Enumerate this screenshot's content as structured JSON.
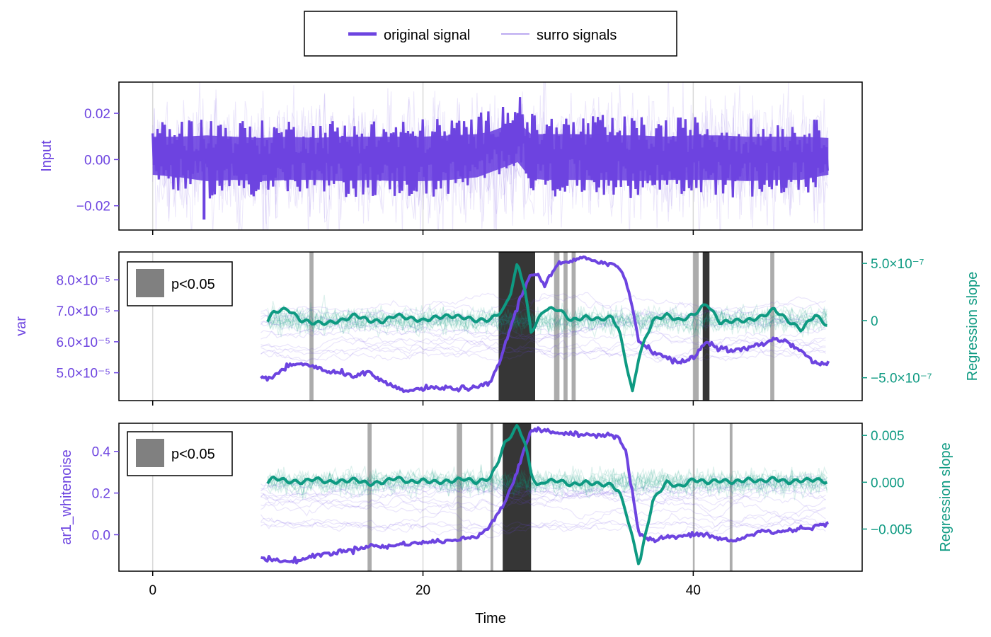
{
  "chart_data": {
    "type": "line",
    "colors": {
      "purple": "#6d44e0",
      "teal": "#0e9a82",
      "sig": "#808080",
      "axis": "#000000",
      "grid": "#d9d9d9"
    },
    "legend": {
      "placement": "top-center",
      "original": "original signal",
      "surro": "surro signals"
    },
    "xaxis": {
      "label": "Time",
      "range": [
        -2.5,
        52.5
      ],
      "ticks": [
        0,
        20,
        40
      ],
      "tick_labels": [
        "0",
        "20",
        "40"
      ]
    },
    "panels": [
      {
        "id": "input",
        "ylabel": "Input",
        "ylim": [
          -0.0305,
          0.0335
        ],
        "yticks": [
          0.02,
          0.0,
          -0.02
        ],
        "ytick_labels": [
          "0.02",
          "0.00",
          "−0.02"
        ],
        "series_original": {
          "name": "original signal",
          "x": [
            0,
            2,
            4,
            6,
            8,
            10,
            12,
            14,
            16,
            18,
            20,
            22,
            24,
            25,
            26,
            27,
            28,
            29,
            30,
            32,
            34,
            36,
            38,
            40,
            42,
            44,
            46,
            48,
            50
          ],
          "y_upper": [
            0.018,
            0.018,
            0.019,
            0.018,
            0.017,
            0.018,
            0.017,
            0.018,
            0.018,
            0.018,
            0.018,
            0.019,
            0.02,
            0.022,
            0.026,
            0.03,
            0.02,
            0.02,
            0.02,
            0.02,
            0.019,
            0.019,
            0.018,
            0.019,
            0.019,
            0.018,
            0.018,
            0.018,
            0.017
          ],
          "y_lower": [
            -0.012,
            -0.014,
            -0.017,
            -0.016,
            -0.017,
            -0.016,
            -0.016,
            -0.017,
            -0.016,
            -0.017,
            -0.017,
            -0.016,
            -0.014,
            -0.01,
            -0.006,
            -0.002,
            -0.015,
            -0.016,
            -0.016,
            -0.016,
            -0.016,
            -0.017,
            -0.016,
            -0.016,
            -0.016,
            -0.017,
            -0.016,
            -0.016,
            -0.012
          ],
          "minimum": [
            3.8,
            -0.026
          ]
        },
        "series_surro": {
          "name": "surro signals",
          "y_upper": 0.025,
          "y_lower": -0.024
        }
      },
      {
        "id": "var",
        "ylabel": "var",
        "ylim": [
          4.1e-05,
          8.9e-05
        ],
        "yticks": [
          8e-05,
          7e-05,
          6e-05,
          5e-05
        ],
        "ytick_labels": [
          "8.0×10⁻⁵",
          "7.0×10⁻⁵",
          "6.0×10⁻⁵",
          "5.0×10⁻⁵"
        ],
        "y2label": "Regression slope",
        "y2lim": [
          -7e-07,
          6e-07
        ],
        "y2ticks": [
          5e-07,
          0,
          -5e-07
        ],
        "y2tick_labels": [
          "5.0×10⁻⁷",
          "0",
          "−5.0×10⁻⁷"
        ],
        "significance_label": "p<0.05",
        "indicator": {
          "name": "original signal",
          "x": [
            8,
            9,
            10,
            11,
            12,
            13,
            14,
            15,
            16,
            17,
            18,
            19,
            20,
            21,
            22,
            23,
            24,
            25,
            25.8,
            26.5,
            27.2,
            28,
            28.5,
            29,
            29.5,
            30,
            31,
            32,
            33,
            34,
            34.5,
            35,
            35.5,
            36,
            37,
            38,
            39,
            40,
            41,
            42,
            43,
            44,
            45,
            46,
            47,
            48,
            49,
            50
          ],
          "y": [
            4.8e-05,
            4.9e-05,
            5.2e-05,
            5.3e-05,
            5.2e-05,
            5e-05,
            5e-05,
            4.9e-05,
            5e-05,
            4.7e-05,
            4.5e-05,
            4.4e-05,
            4.5e-05,
            4.5e-05,
            4.5e-05,
            4.5e-05,
            4.5e-05,
            4.7e-05,
            5.5e-05,
            6.5e-05,
            7.4e-05,
            8.2e-05,
            8.2e-05,
            7.8e-05,
            8.2e-05,
            8.5e-05,
            8.6e-05,
            8.7e-05,
            8.6e-05,
            8.5e-05,
            8.4e-05,
            8e-05,
            7.1e-05,
            6e-05,
            5.7e-05,
            5.5e-05,
            5.3e-05,
            5.5e-05,
            6e-05,
            5.8e-05,
            5.7e-05,
            5.8e-05,
            5.9e-05,
            6.1e-05,
            6e-05,
            5.7e-05,
            5.3e-05,
            5.3e-05
          ]
        },
        "slope": {
          "name": "Regression slope",
          "x": [
            8.5,
            9,
            10,
            11,
            12,
            13,
            14,
            15,
            16,
            17,
            18,
            19,
            20,
            21,
            22,
            23,
            24,
            25,
            26,
            26.5,
            27,
            27.5,
            28,
            28.5,
            29,
            30,
            31,
            32,
            33,
            34,
            34.5,
            35,
            35.5,
            36,
            37,
            38,
            39,
            40,
            41,
            42,
            43,
            44,
            45,
            46,
            47,
            48,
            49,
            50
          ],
          "y": [
            0,
            8e-08,
            1e-07,
            0,
            -2e-08,
            -2e-08,
            0,
            5e-08,
            0,
            -1e-08,
            5e-08,
            2e-08,
            0,
            3e-08,
            4e-08,
            3e-08,
            0,
            1e-08,
            1e-07,
            2.5e-07,
            5e-07,
            3e-07,
            -1e-07,
            0,
            1e-07,
            1e-07,
            0,
            3e-08,
            1e-08,
            3e-08,
            -8e-08,
            -3.5e-07,
            -6.3e-07,
            -3e-07,
            0,
            5e-08,
            0,
            5e-08,
            1.5e-07,
            -2e-08,
            0,
            0,
            3e-08,
            1e-07,
            0,
            -8e-08,
            5e-08,
            -5e-08
          ]
        },
        "significance_intervals": [
          [
            11.6,
            11.9
          ],
          [
            25.6,
            28.3
          ],
          [
            29.7,
            30.1
          ],
          [
            30.4,
            30.7
          ],
          [
            31.0,
            31.3
          ],
          [
            40.0,
            40.4
          ],
          [
            40.7,
            41.2
          ],
          [
            45.7,
            46.0
          ]
        ]
      },
      {
        "id": "ar1",
        "ylabel": "ar1_whitenoise",
        "ylim": [
          -0.175,
          0.535
        ],
        "yticks": [
          0.4,
          0.2,
          0.0
        ],
        "ytick_labels": [
          "0.4",
          "0.2",
          "0.0"
        ],
        "y2label": "Regression slope",
        "y2lim": [
          -0.0095,
          0.0063
        ],
        "y2ticks": [
          0.005,
          0.0,
          -0.005
        ],
        "y2tick_labels": [
          "0.005",
          "0.000",
          "−0.005"
        ],
        "significance_label": "p<0.05",
        "indicator": {
          "name": "original signal",
          "x": [
            8,
            9,
            10,
            11,
            12,
            13,
            14,
            15,
            16,
            17,
            18,
            19,
            20,
            21,
            22,
            23,
            24,
            25,
            26,
            27,
            27.5,
            28,
            29,
            30,
            31,
            32,
            33,
            34,
            34.5,
            35,
            35.5,
            36,
            37,
            38,
            39,
            40,
            41,
            42,
            43,
            44,
            45,
            46,
            47,
            48,
            49,
            50
          ],
          "y": [
            -0.11,
            -0.12,
            -0.13,
            -0.12,
            -0.1,
            -0.09,
            -0.08,
            -0.07,
            -0.05,
            -0.06,
            -0.05,
            -0.04,
            -0.04,
            -0.03,
            -0.03,
            -0.02,
            -0.01,
            0.05,
            0.15,
            0.3,
            0.42,
            0.5,
            0.5,
            0.49,
            0.48,
            0.48,
            0.48,
            0.48,
            0.47,
            0.4,
            0.2,
            0.0,
            -0.03,
            -0.01,
            -0.01,
            0.0,
            0.0,
            -0.02,
            -0.03,
            -0.01,
            0.02,
            0.01,
            0.02,
            0.03,
            0.04,
            0.05
          ]
        },
        "slope": {
          "name": "Regression slope",
          "x": [
            8.5,
            9,
            10,
            11,
            12,
            13,
            14,
            15,
            16,
            17,
            18,
            19,
            20,
            21,
            22,
            23,
            24,
            25,
            25.5,
            26,
            26.5,
            27,
            27.5,
            28,
            28.5,
            29,
            30,
            31,
            32,
            33,
            34,
            34.5,
            35,
            35.5,
            36,
            37,
            38,
            39,
            40,
            41,
            42,
            43,
            44,
            45,
            46,
            47,
            48,
            49,
            50
          ],
          "y": [
            0,
            0.0005,
            0.0001,
            0,
            0.0004,
            0,
            0.0001,
            0.0003,
            -0.0002,
            0,
            0.0005,
            0,
            0.0002,
            0,
            0.0001,
            0.0004,
            0,
            0.0005,
            0.002,
            0.004,
            0.005,
            0.006,
            0.0045,
            0.001,
            -0.0005,
            0.0001,
            0.0002,
            -0.0003,
            0,
            -0.0002,
            -0.0003,
            -0.001,
            -0.003,
            -0.006,
            -0.0088,
            -0.002,
            0,
            -0.0005,
            0.0003,
            0,
            0.0002,
            0,
            0.0003,
            0.0001,
            0.0004,
            0,
            0.0002,
            0.0003,
            0
          ]
        },
        "significance_intervals": [
          [
            15.9,
            16.2
          ],
          [
            22.5,
            22.9
          ],
          [
            25.0,
            25.2
          ],
          [
            25.9,
            28.0
          ],
          [
            40.0,
            40.1
          ],
          [
            42.7,
            42.9
          ]
        ]
      }
    ]
  }
}
